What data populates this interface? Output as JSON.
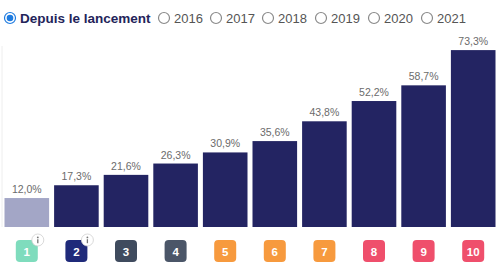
{
  "chart_data": {
    "type": "bar",
    "categories": [
      "1",
      "2",
      "3",
      "4",
      "5",
      "6",
      "7",
      "8",
      "9",
      "10"
    ],
    "values": [
      12.0,
      17.3,
      21.6,
      26.3,
      30.9,
      35.6,
      43.8,
      52.2,
      58.7,
      73.3
    ],
    "value_labels": [
      "12,0%",
      "17,3%",
      "21,6%",
      "26,3%",
      "30,9%",
      "35,6%",
      "43,8%",
      "52,2%",
      "58,7%",
      "73,3%"
    ],
    "colors": [
      "#a3a6c6",
      "#232462",
      "#232462",
      "#232462",
      "#232462",
      "#232462",
      "#232462",
      "#232462",
      "#232462",
      "#232462"
    ],
    "ylim": [
      0,
      75
    ],
    "yticks": [],
    "data_labels": true,
    "tick_labels": "x",
    "grid": false
  },
  "filter": {
    "options": [
      "Depuis le lancement",
      "2016",
      "2017",
      "2018",
      "2019",
      "2020",
      "2021"
    ],
    "selected": "Depuis le lancement"
  }
}
